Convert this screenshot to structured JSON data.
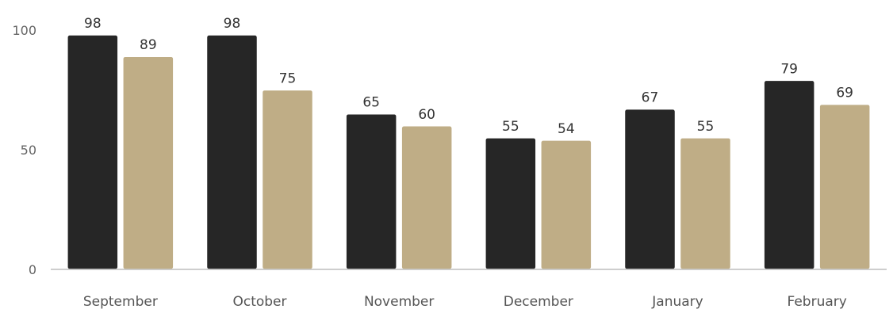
{
  "chart_data": {
    "type": "bar",
    "title": "",
    "xlabel": "",
    "ylabel": "",
    "categories": [
      "September",
      "October",
      "November",
      "December",
      "January",
      "February"
    ],
    "series": [
      {
        "values": [
          98,
          98,
          65,
          55,
          67,
          79
        ],
        "color": "#262626"
      },
      {
        "values": [
          89,
          75,
          60,
          54,
          55,
          69
        ],
        "color": "#bfad86"
      }
    ],
    "ylim": [
      0,
      100
    ],
    "yticks": [
      0,
      50,
      100
    ],
    "grid": false,
    "legend": "none",
    "data_labels": true
  }
}
